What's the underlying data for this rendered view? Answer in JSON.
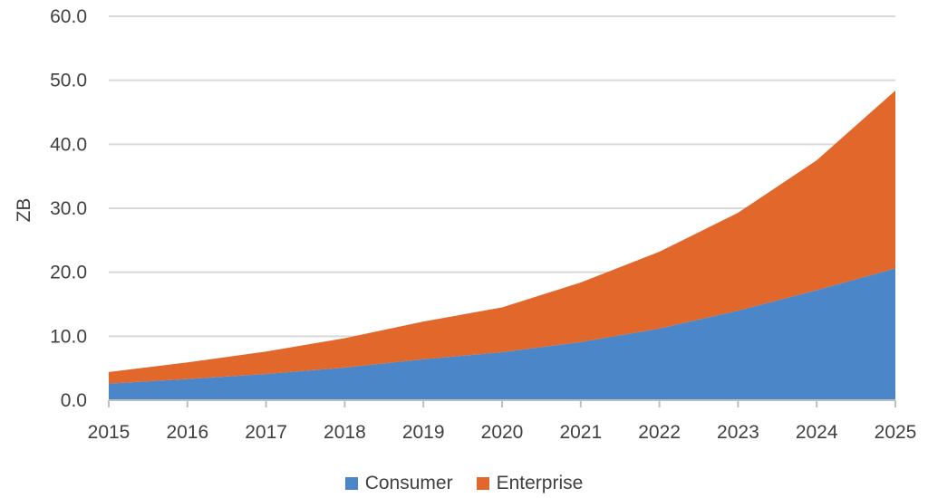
{
  "chart_data": {
    "type": "area",
    "stacked": true,
    "title": "",
    "xlabel": "",
    "ylabel": "ZB",
    "categories": [
      "2015",
      "2016",
      "2017",
      "2018",
      "2019",
      "2020",
      "2021",
      "2022",
      "2023",
      "2024",
      "2025"
    ],
    "ylim": [
      0,
      60
    ],
    "yticks": [
      "0.0",
      "10.0",
      "20.0",
      "30.0",
      "40.0",
      "50.0",
      "60.0"
    ],
    "grid": true,
    "legend_position": "bottom",
    "series": [
      {
        "name": "Consumer",
        "color": "#4a86c8",
        "values": [
          2.6,
          3.3,
          4.1,
          5.1,
          6.4,
          7.5,
          9.1,
          11.2,
          14.0,
          17.2,
          20.6
        ]
      },
      {
        "name": "Enterprise",
        "color": "#e2672a",
        "values": [
          1.8,
          2.6,
          3.5,
          4.6,
          5.9,
          7.0,
          9.3,
          12.0,
          15.3,
          20.3,
          27.8
        ]
      }
    ]
  }
}
